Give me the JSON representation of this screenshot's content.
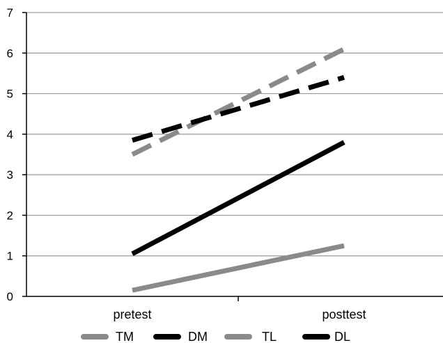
{
  "chart_data": {
    "type": "line",
    "title": "",
    "xlabel": "",
    "ylabel": "",
    "categories": [
      "pretest",
      "posttest"
    ],
    "ylim": [
      0,
      7
    ],
    "yticks": [
      "0",
      "1",
      "2",
      "3",
      "4",
      "5",
      "6",
      "7"
    ],
    "grid": true,
    "legend_position": "bottom",
    "series": [
      {
        "name": "TM",
        "values": [
          3.5,
          6.1
        ],
        "color": "#8a8a8a",
        "dash": "dashed"
      },
      {
        "name": "DM",
        "values": [
          3.85,
          5.4
        ],
        "color": "#000000",
        "dash": "dashed"
      },
      {
        "name": "TL",
        "values": [
          0.15,
          1.25
        ],
        "color": "#8a8a8a",
        "dash": "solid"
      },
      {
        "name": "DL",
        "values": [
          1.05,
          3.8
        ],
        "color": "#000000",
        "dash": "solid"
      }
    ]
  }
}
